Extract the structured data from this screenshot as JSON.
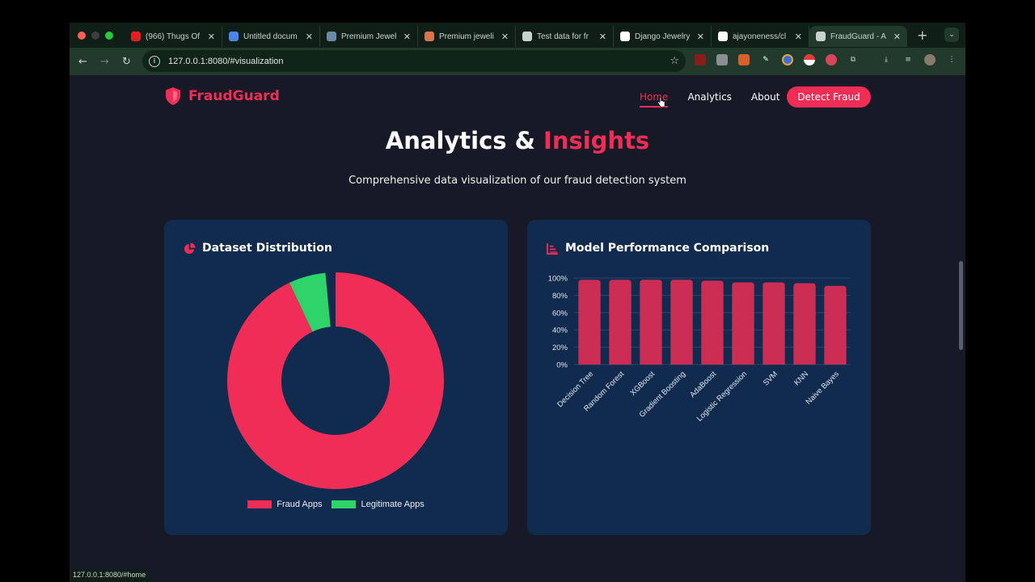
{
  "browser": {
    "tabs": [
      {
        "title": "(966) Thugs Of",
        "favicon": "youtube-icon",
        "color": "#e02020"
      },
      {
        "title": "Untitled docum",
        "favicon": "docs-icon",
        "color": "#4a86e8"
      },
      {
        "title": "Premium Jewel",
        "favicon": "g-icon",
        "color": "#6b8aa6"
      },
      {
        "title": "Premium jeweli",
        "favicon": "claude-icon",
        "color": "#d9734e"
      },
      {
        "title": "Test data for fr",
        "favicon": "openai-icon",
        "color": "#c9d3cd"
      },
      {
        "title": "Django Jewelry",
        "favicon": "chatbot-icon",
        "color": "#ffffff"
      },
      {
        "title": "ajayoneness/cl",
        "favicon": "github-icon",
        "color": "#ffffff"
      },
      {
        "title": "FraudGuard - A",
        "favicon": "globe-icon",
        "color": "#c9d3cd",
        "active": true
      }
    ],
    "url": "127.0.0.1:8080/#visualization",
    "status_url": "127.0.0.1:8080/#home"
  },
  "site": {
    "brand": "FraudGuard",
    "nav": [
      {
        "label": "Home",
        "active": true
      },
      {
        "label": "Analytics",
        "active": false
      },
      {
        "label": "About",
        "active": false
      }
    ],
    "cta": "Detect Fraud",
    "accent_color": "#ef2d56"
  },
  "section": {
    "title_main": "Analytics & ",
    "title_accent": "Insights",
    "subtitle": "Comprehensive data visualization of our fraud detection system"
  },
  "cards": {
    "distribution": {
      "title": "Dataset Distribution",
      "icon": "pie-chart-icon"
    },
    "performance": {
      "title": "Model Performance Comparison",
      "icon": "bar-chart-icon"
    }
  },
  "chart_data": [
    {
      "type": "pie",
      "variant": "doughnut",
      "title": "Dataset Distribution",
      "categories": [
        "Fraud Apps",
        "Legitimate Apps"
      ],
      "values": [
        93,
        5.5
      ],
      "colors": [
        "#ef2d56",
        "#2ed46a"
      ],
      "legend_position": "bottom"
    },
    {
      "type": "bar",
      "title": "Model Performance Comparison",
      "categories": [
        "Decision Tree",
        "Random Forest",
        "XGBoost",
        "Gradient Boosting",
        "AdaBoost",
        "Logistic Regression",
        "SVM",
        "KNN",
        "Naive Bayes"
      ],
      "values": [
        98,
        98,
        98,
        98,
        97,
        95,
        95,
        94,
        91
      ],
      "ylabel": "",
      "xlabel": "",
      "ylim": [
        0,
        100
      ],
      "yticks": [
        "0%",
        "20%",
        "40%",
        "60%",
        "80%",
        "100%"
      ],
      "grid": true,
      "bar_color": "#cc2d55",
      "legend": "none"
    }
  ]
}
